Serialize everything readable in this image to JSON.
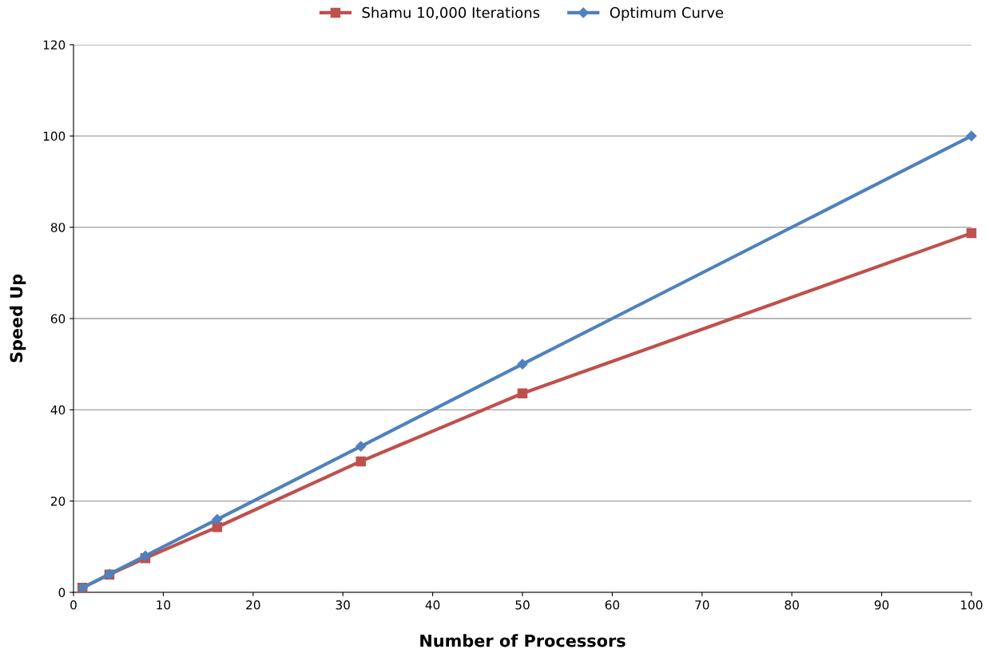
{
  "chart_data": {
    "type": "line",
    "xlabel": "Number of Processors",
    "ylabel": "Speed Up",
    "x": [
      1,
      4,
      8,
      16,
      32,
      50,
      100
    ],
    "series": [
      {
        "name": "Shamu 10,000 Iterations",
        "color": "#c0504d",
        "marker": "square",
        "values": [
          1,
          3.9,
          7.5,
          14.3,
          28.7,
          43.6,
          78.7
        ]
      },
      {
        "name": "Optimum Curve",
        "color": "#4f81bd",
        "marker": "diamond",
        "values": [
          1,
          4,
          8,
          16,
          32,
          50,
          100
        ]
      }
    ],
    "xlim": [
      0,
      100
    ],
    "xticks": [
      0,
      10,
      20,
      30,
      40,
      50,
      60,
      70,
      80,
      90,
      100
    ],
    "ylim": [
      0,
      120
    ],
    "yticks": [
      0,
      20,
      40,
      60,
      80,
      100,
      120
    ],
    "grid": "y",
    "legend": "top",
    "line_style": "solid"
  }
}
